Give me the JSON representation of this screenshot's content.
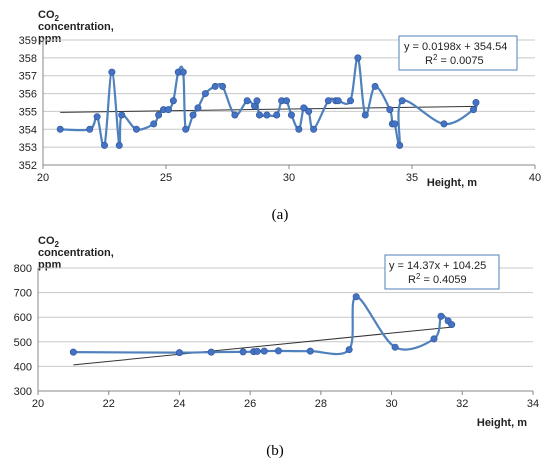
{
  "chart_data": [
    {
      "type": "scatter",
      "panel_label": "(a)",
      "ylabel_line1": "CO",
      "ylabel_sub": "2",
      "ylabel_line2": "concentration,",
      "ylabel_line3": "ppm",
      "xlabel": "Height, m",
      "xlim": [
        20,
        40
      ],
      "ylim": [
        352,
        359
      ],
      "xticks": [
        "20",
        "25",
        "30",
        "35",
        "40"
      ],
      "yticks": [
        "352",
        "353",
        "354",
        "355",
        "356",
        "357",
        "358",
        "359"
      ],
      "grid": "horizontal",
      "smoothed_line": true,
      "series": [
        {
          "values": [
            [
              20.7,
              354.0
            ],
            [
              21.9,
              354.0
            ],
            [
              22.2,
              354.7
            ],
            [
              22.5,
              353.1
            ],
            [
              22.8,
              357.2
            ],
            [
              23.1,
              353.1
            ],
            [
              23.2,
              354.8
            ],
            [
              23.8,
              354.0
            ],
            [
              24.5,
              354.3
            ],
            [
              24.7,
              354.8
            ],
            [
              24.9,
              355.1
            ],
            [
              25.1,
              355.1
            ],
            [
              25.3,
              355.6
            ],
            [
              25.5,
              357.2
            ],
            [
              25.7,
              357.2
            ],
            [
              25.8,
              354.0
            ],
            [
              26.1,
              354.8
            ],
            [
              26.3,
              355.2
            ],
            [
              26.6,
              356.0
            ],
            [
              27.0,
              356.4
            ],
            [
              27.3,
              356.4
            ],
            [
              27.8,
              354.8
            ],
            [
              28.3,
              355.6
            ],
            [
              28.6,
              355.3
            ],
            [
              28.7,
              355.6
            ],
            [
              28.8,
              354.8
            ],
            [
              29.1,
              354.8
            ],
            [
              29.5,
              354.8
            ],
            [
              29.7,
              355.6
            ],
            [
              29.9,
              355.6
            ],
            [
              30.1,
              354.8
            ],
            [
              30.4,
              354.0
            ],
            [
              30.6,
              355.2
            ],
            [
              30.8,
              355.0
            ],
            [
              31.0,
              354.0
            ],
            [
              31.6,
              355.6
            ],
            [
              31.9,
              355.6
            ],
            [
              32.0,
              355.6
            ],
            [
              32.5,
              355.6
            ],
            [
              32.8,
              358.0
            ],
            [
              33.1,
              354.8
            ],
            [
              33.5,
              356.4
            ],
            [
              34.1,
              355.1
            ],
            [
              34.2,
              354.3
            ],
            [
              34.3,
              354.3
            ],
            [
              34.5,
              353.1
            ],
            [
              34.6,
              355.6
            ],
            [
              36.3,
              354.3
            ],
            [
              37.5,
              355.1
            ],
            [
              37.6,
              355.5
            ]
          ]
        }
      ],
      "trendline": {
        "slope": 0.0198,
        "intercept": 354.54
      },
      "trendline_range": [
        20.7,
        37.6
      ],
      "equation": "y = 0.0198x + 354.54",
      "r2_prefix": "R",
      "r2_sup": "2",
      "r2_value": " = 0.0075"
    },
    {
      "type": "scatter",
      "panel_label": "(b)",
      "ylabel_line1": "CO",
      "ylabel_sub": "2",
      "ylabel_line2": "concentration,",
      "ylabel_line3": "ppm",
      "xlabel": "Height, m",
      "xlim": [
        20,
        34
      ],
      "ylim": [
        300,
        800
      ],
      "xticks": [
        "20",
        "22",
        "24",
        "26",
        "28",
        "30",
        "32",
        "34"
      ],
      "yticks": [
        "300",
        "400",
        "500",
        "600",
        "700",
        "800"
      ],
      "grid": "horizontal",
      "smoothed_line": true,
      "series": [
        {
          "values": [
            [
              21.0,
              458
            ],
            [
              24.0,
              456
            ],
            [
              24.9,
              458
            ],
            [
              25.8,
              459
            ],
            [
              26.1,
              460
            ],
            [
              26.2,
              461
            ],
            [
              26.4,
              462
            ],
            [
              26.8,
              463
            ],
            [
              27.7,
              462
            ],
            [
              28.8,
              468
            ],
            [
              29.0,
              683
            ],
            [
              30.1,
              478
            ],
            [
              31.2,
              512
            ],
            [
              31.4,
              604
            ],
            [
              31.6,
              585
            ],
            [
              31.7,
              570
            ]
          ]
        }
      ],
      "trendline": {
        "slope": 14.37,
        "intercept": 104.25
      },
      "trendline_range": [
        21.0,
        31.7
      ],
      "equation": "y = 14.37x + 104.25",
      "r2_prefix": "R",
      "r2_sup": "2",
      "r2_value": " = 0.4059"
    }
  ]
}
